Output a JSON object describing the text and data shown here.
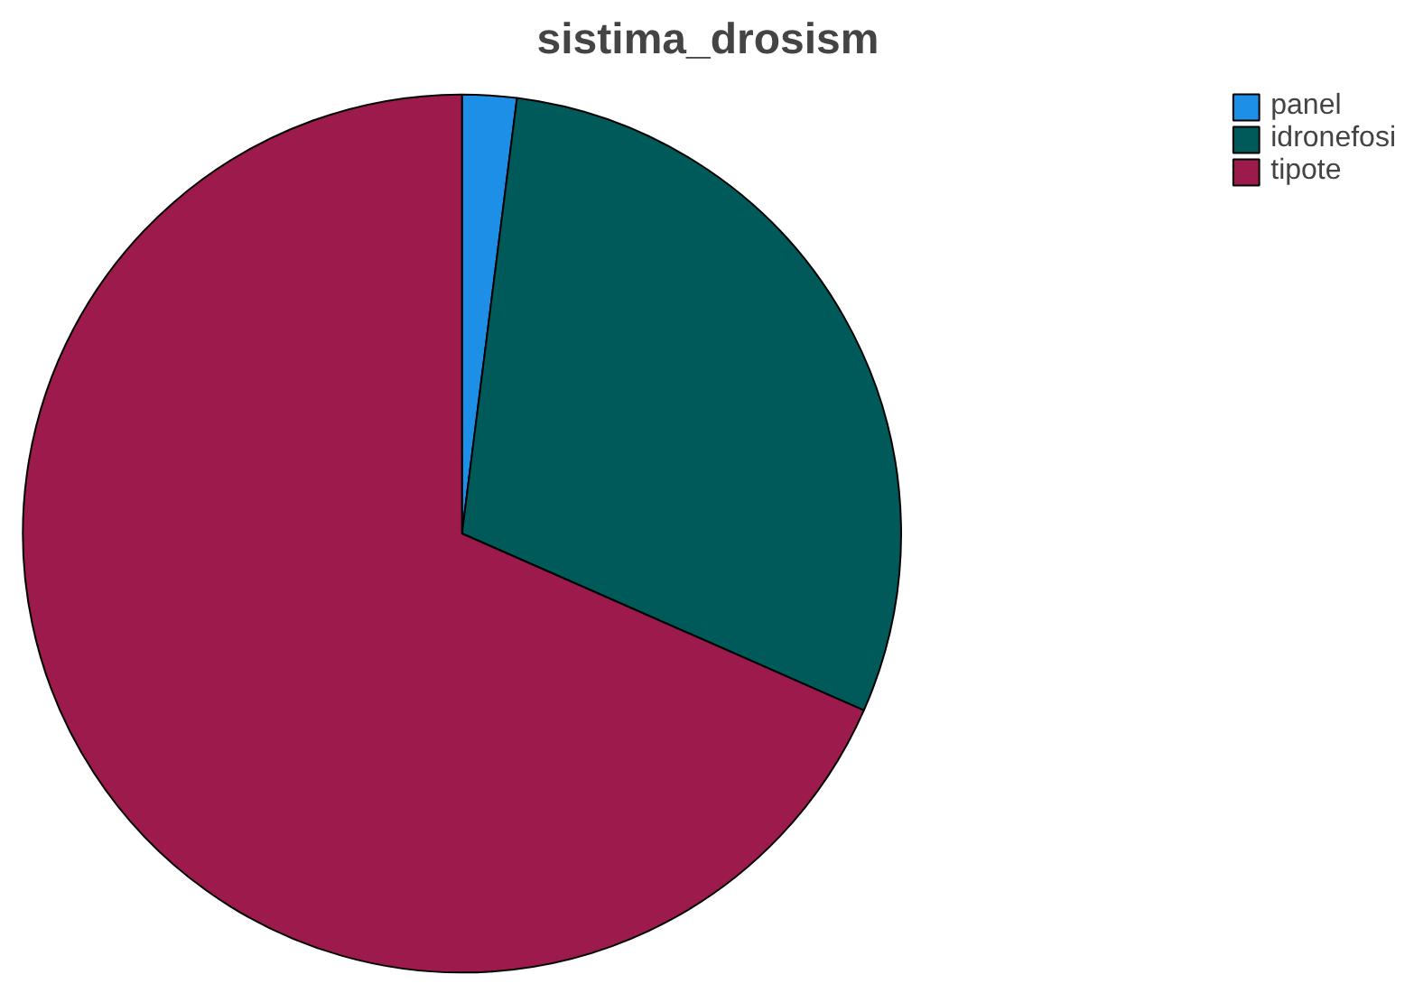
{
  "chart_data": {
    "type": "pie",
    "title": "sistima_drosism",
    "categories": [
      "panel",
      "idronefosi",
      "tipote"
    ],
    "values": [
      2.0,
      29.6,
      68.4
    ],
    "colors": [
      "#1e8fe6",
      "#005a5a",
      "#9c1a4c"
    ],
    "legend": "top right"
  }
}
